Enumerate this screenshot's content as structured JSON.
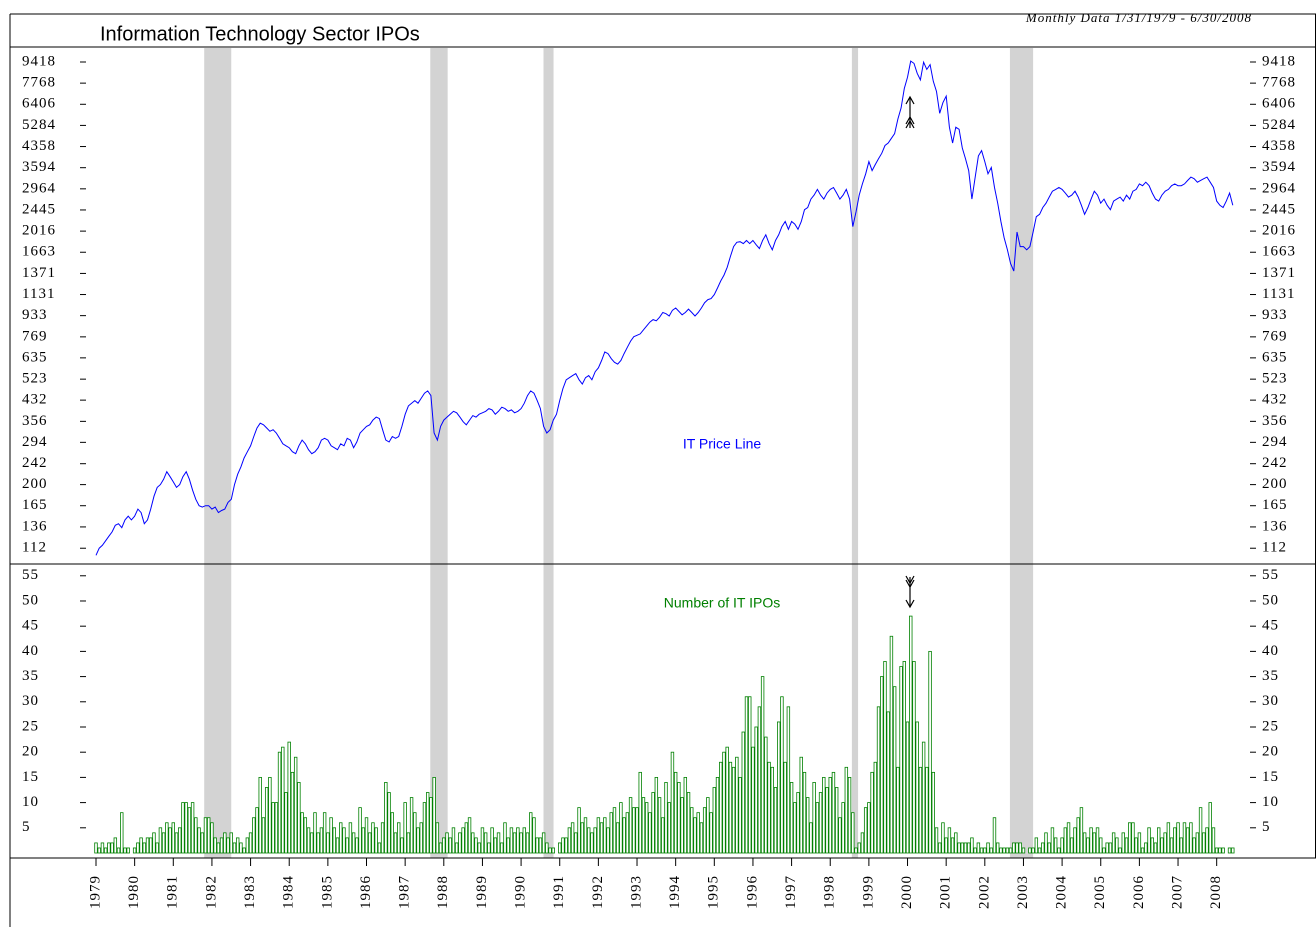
{
  "chart_data": [
    {
      "type": "line",
      "title": "Information Technology Sector IPOs",
      "subtitle": "Monthly Data 1/31/1979 - 6/30/2008",
      "log_scale": true,
      "xlim": [
        1979,
        2008.5
      ],
      "ylim": [
        97,
        10700
      ],
      "yticks": [
        112,
        136,
        165,
        200,
        242,
        294,
        356,
        432,
        523,
        635,
        769,
        933,
        1131,
        1371,
        1663,
        2016,
        2445,
        2964,
        3594,
        4358,
        5284,
        6406,
        7768,
        9418
      ],
      "shaded_periods": [
        [
          1981.8,
          1982.5
        ],
        [
          1987.65,
          1988.1
        ],
        [
          1990.58,
          1990.84
        ],
        [
          1998.56,
          1998.72
        ],
        [
          2002.65,
          2003.25
        ]
      ],
      "series": [
        {
          "name": "IT Price Line",
          "color": "#0000ff",
          "values": [
            105,
            112,
            115,
            120,
            125,
            130,
            138,
            140,
            135,
            145,
            150,
            145,
            150,
            160,
            155,
            140,
            145,
            160,
            180,
            195,
            200,
            210,
            225,
            215,
            205,
            195,
            200,
            215,
            225,
            210,
            190,
            175,
            165,
            163,
            165,
            165,
            160,
            163,
            155,
            158,
            160,
            170,
            175,
            200,
            220,
            235,
            255,
            270,
            285,
            310,
            335,
            350,
            345,
            335,
            325,
            330,
            320,
            305,
            290,
            285,
            280,
            270,
            265,
            285,
            300,
            290,
            275,
            265,
            270,
            280,
            300,
            305,
            300,
            285,
            280,
            275,
            290,
            285,
            305,
            300,
            280,
            295,
            320,
            330,
            340,
            345,
            360,
            370,
            365,
            330,
            300,
            295,
            310,
            305,
            310,
            340,
            380,
            410,
            420,
            430,
            420,
            440,
            460,
            470,
            450,
            320,
            300,
            340,
            360,
            370,
            380,
            390,
            385,
            370,
            355,
            345,
            360,
            375,
            370,
            380,
            385,
            390,
            400,
            395,
            380,
            390,
            405,
            400,
            390,
            395,
            385,
            390,
            400,
            420,
            450,
            470,
            460,
            430,
            400,
            340,
            320,
            330,
            360,
            380,
            430,
            480,
            520,
            530,
            540,
            550,
            520,
            500,
            530,
            540,
            520,
            560,
            580,
            620,
            670,
            660,
            630,
            610,
            600,
            620,
            660,
            700,
            740,
            770,
            780,
            790,
            820,
            850,
            880,
            900,
            890,
            920,
            960,
            950,
            930,
            980,
            1000,
            970,
            940,
            960,
            990,
            960,
            930,
            960,
            1000,
            1050,
            1080,
            1090,
            1130,
            1200,
            1280,
            1350,
            1450,
            1600,
            1750,
            1820,
            1830,
            1800,
            1850,
            1800,
            1850,
            1780,
            1720,
            1850,
            1950,
            1800,
            1700,
            1850,
            1950,
            2100,
            2200,
            2050,
            2200,
            2150,
            2050,
            2200,
            2450,
            2500,
            2700,
            2800,
            2950,
            2800,
            2700,
            2850,
            2950,
            3000,
            2850,
            2700,
            2800,
            2950,
            2700,
            2100,
            2400,
            2800,
            3100,
            3400,
            3800,
            3500,
            3700,
            3900,
            4100,
            4400,
            4500,
            4700,
            4900,
            5600,
            6200,
            7400,
            8200,
            9500,
            9300,
            8500,
            8000,
            9400,
            8800,
            9200,
            7900,
            7200,
            5900,
            6500,
            6900,
            5200,
            4500,
            5200,
            5100,
            4300,
            3900,
            3500,
            2700,
            3300,
            4000,
            4200,
            3800,
            3400,
            3600,
            3000,
            2600,
            2200,
            1900,
            1700,
            1500,
            1400,
            2000,
            1750,
            1750,
            1700,
            1750,
            2000,
            2300,
            2350,
            2500,
            2600,
            2750,
            2900,
            2950,
            3000,
            2950,
            2850,
            2750,
            2800,
            2900,
            2750,
            2550,
            2350,
            2500,
            2700,
            2900,
            2800,
            2600,
            2700,
            2550,
            2450,
            2650,
            2700,
            2750,
            2650,
            2800,
            2700,
            2900,
            2950,
            3100,
            3050,
            3150,
            3050,
            2850,
            2700,
            2650,
            2800,
            2900,
            2950,
            3050,
            3100,
            3050,
            3050,
            3100,
            3200,
            3300,
            3250,
            3150,
            3200,
            3250,
            3300,
            3150,
            3000,
            2650,
            2550,
            2500,
            2650,
            2850,
            2550
          ]
        }
      ]
    },
    {
      "type": "bar",
      "xlim": [
        1979,
        2008.5
      ],
      "ylim": [
        0,
        57
      ],
      "yticks": [
        5,
        10,
        15,
        20,
        25,
        30,
        35,
        40,
        45,
        50,
        55
      ],
      "xticks": [
        1979,
        1980,
        1981,
        1982,
        1983,
        1984,
        1985,
        1986,
        1987,
        1988,
        1989,
        1990,
        1991,
        1992,
        1993,
        1994,
        1995,
        1996,
        1997,
        1998,
        1999,
        2000,
        2001,
        2002,
        2003,
        2004,
        2005,
        2006,
        2007,
        2008
      ],
      "series": [
        {
          "name": "Number of IT IPOs",
          "color": "#008000",
          "values": [
            2,
            1,
            2,
            1,
            2,
            2,
            3,
            1,
            8,
            1,
            1,
            0,
            1,
            2,
            3,
            2,
            3,
            3,
            4,
            2,
            5,
            4,
            6,
            5,
            6,
            4,
            5,
            10,
            10,
            9,
            10,
            7,
            5,
            4,
            7,
            7,
            6,
            3,
            2,
            3,
            4,
            3,
            4,
            2,
            3,
            2,
            1,
            3,
            4,
            7,
            9,
            15,
            7,
            13,
            15,
            10,
            10,
            20,
            21,
            12,
            22,
            16,
            19,
            14,
            8,
            7,
            5,
            4,
            8,
            4,
            5,
            8,
            4,
            7,
            5,
            3,
            6,
            5,
            3,
            6,
            4,
            3,
            9,
            5,
            7,
            4,
            6,
            5,
            2,
            6,
            14,
            12,
            8,
            4,
            6,
            3,
            10,
            4,
            11,
            8,
            5,
            6,
            10,
            12,
            11,
            15,
            6,
            2,
            3,
            4,
            3,
            5,
            2,
            4,
            5,
            6,
            7,
            4,
            3,
            2,
            5,
            4,
            2,
            5,
            3,
            4,
            2,
            6,
            3,
            5,
            4,
            5,
            4,
            5,
            4,
            8,
            7,
            3,
            3,
            4,
            2,
            1,
            1,
            0,
            2,
            3,
            3,
            5,
            6,
            4,
            9,
            6,
            7,
            5,
            4,
            5,
            7,
            6,
            7,
            5,
            8,
            9,
            6,
            10,
            7,
            8,
            11,
            9,
            9,
            16,
            11,
            10,
            8,
            12,
            15,
            11,
            7,
            14,
            10,
            20,
            16,
            14,
            11,
            15,
            12,
            9,
            7,
            8,
            6,
            9,
            11,
            8,
            13,
            15,
            18,
            20,
            21,
            18,
            17,
            19,
            15,
            24,
            31,
            31,
            21,
            25,
            29,
            35,
            23,
            18,
            17,
            13,
            26,
            31,
            18,
            29,
            14,
            10,
            12,
            19,
            16,
            11,
            6,
            14,
            10,
            12,
            15,
            13,
            15,
            16,
            13,
            7,
            10,
            17,
            15,
            8,
            1,
            2,
            4,
            9,
            10,
            16,
            18,
            29,
            35,
            38,
            28,
            43,
            33,
            17,
            37,
            38,
            26,
            47,
            38,
            26,
            17,
            22,
            17,
            40,
            16,
            5,
            2,
            6,
            3,
            5,
            3,
            4,
            2,
            2,
            2,
            2,
            3,
            1,
            2,
            1,
            1,
            2,
            1,
            7,
            2,
            1,
            1,
            1,
            1,
            2,
            2,
            2,
            1,
            0,
            1,
            1,
            3,
            1,
            2,
            4,
            2,
            5,
            3,
            1,
            3,
            5,
            6,
            3,
            5,
            7,
            9,
            4,
            3,
            5,
            4,
            5,
            3,
            1,
            2,
            2,
            4,
            3,
            1,
            4,
            3,
            6,
            6,
            3,
            4,
            1,
            2,
            5,
            3,
            2,
            5,
            3,
            4,
            6,
            3,
            5,
            6,
            3,
            6,
            5,
            6,
            3,
            4,
            9,
            4,
            5,
            10,
            5,
            1,
            1,
            1,
            0,
            1,
            1
          ]
        }
      ]
    }
  ]
}
